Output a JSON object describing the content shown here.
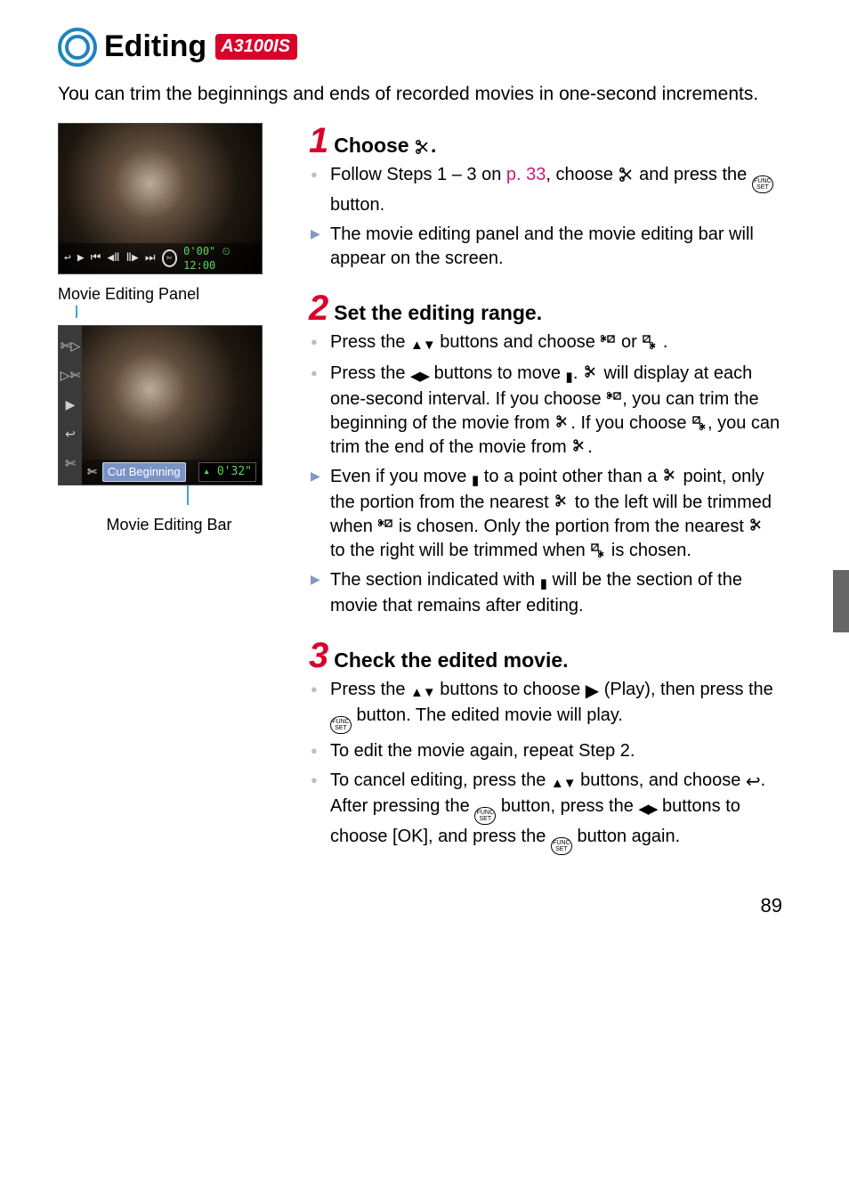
{
  "title": {
    "text": "Editing",
    "badge": "A3100IS"
  },
  "intro": "You can trim the beginnings and ends of recorded movies in one-second increments.",
  "left": {
    "panel_caption": "Movie Editing Panel",
    "bar_caption": "Movie Editing Bar",
    "top_image": {
      "playbar": {
        "symbols": [
          "↩",
          "▶",
          "⏮",
          "◀Ⅱ",
          "Ⅱ▶",
          "⏭"
        ],
        "scissors": "✄",
        "time_left": "0'00\"",
        "clock": "⏲",
        "time_right": "12:00"
      }
    },
    "bottom_image": {
      "side_icons": [
        "✄▷",
        "▷✄",
        "▶",
        "↩",
        "✄"
      ],
      "cut_label": "Cut Beginning",
      "cut_time": "0'32\"",
      "arrow": "▴"
    }
  },
  "steps": [
    {
      "num": "1",
      "title_pre": "Choose ",
      "title_icon": "✄",
      "title_post": ".",
      "bullets": [
        {
          "type": "dot",
          "parts": [
            "Follow Steps 1 – 3 on ",
            {
              "link": "p. 33"
            },
            ", choose ",
            {
              "sym": "scissors"
            },
            " and press the ",
            {
              "sym": "func"
            },
            " button."
          ]
        },
        {
          "type": "tri",
          "parts": [
            "The movie editing panel and the movie editing bar will appear on the screen."
          ]
        }
      ]
    },
    {
      "num": "2",
      "title_pre": "Set the editing range.",
      "title_icon": "",
      "title_post": "",
      "bullets": [
        {
          "type": "dot",
          "parts": [
            "Press the ",
            {
              "sym": "updown"
            },
            " buttons and choose ",
            {
              "sym": "trimstart"
            },
            " or ",
            {
              "sym": "trimend"
            },
            " ."
          ]
        },
        {
          "type": "dot",
          "parts": [
            "Press the ",
            {
              "sym": "leftright"
            },
            " buttons to move ",
            {
              "sym": "marker"
            },
            ". ",
            {
              "sym": "cutpoint"
            },
            " will display at each one-second interval. If you choose ",
            {
              "sym": "trimstart"
            },
            ", you can trim the beginning of the movie from ",
            {
              "sym": "cutpoint"
            },
            ". If you choose ",
            {
              "sym": "trimend"
            },
            ", you can trim the end of the movie from ",
            {
              "sym": "cutpoint"
            },
            "."
          ]
        },
        {
          "type": "tri",
          "parts": [
            "Even if you move ",
            {
              "sym": "marker"
            },
            " to a point other than a ",
            {
              "sym": "cutpoint"
            },
            " point, only the portion from the nearest ",
            {
              "sym": "cutpoint"
            },
            " to the left will be trimmed when ",
            {
              "sym": "trimstart"
            },
            " is chosen. Only the portion from the nearest ",
            {
              "sym": "cutpoint"
            },
            " to the right will be trimmed when ",
            {
              "sym": "trimend"
            },
            " is chosen."
          ]
        },
        {
          "type": "tri",
          "parts": [
            "The section indicated with ",
            {
              "sym": "marker"
            },
            " will be the section of the movie that remains after editing."
          ]
        }
      ]
    },
    {
      "num": "3",
      "title_pre": "Check the edited movie.",
      "title_icon": "",
      "title_post": "",
      "bullets": [
        {
          "type": "dot",
          "parts": [
            "Press the ",
            {
              "sym": "updown"
            },
            " buttons to choose ",
            {
              "sym": "play"
            },
            " (Play), then press the ",
            {
              "sym": "func"
            },
            " button. The edited movie will play."
          ]
        },
        {
          "type": "dot",
          "parts": [
            "To edit the movie again, repeat Step 2."
          ]
        },
        {
          "type": "dot",
          "parts": [
            "To cancel editing, press the ",
            {
              "sym": "updown"
            },
            " buttons, and choose ",
            {
              "sym": "back"
            },
            ". After pressing the ",
            {
              "sym": "func"
            },
            " button, press the ",
            {
              "sym": "leftright"
            },
            " buttons to choose [OK], and press the ",
            {
              "sym": "func"
            },
            " button again."
          ]
        }
      ]
    }
  ],
  "page_number": "89"
}
